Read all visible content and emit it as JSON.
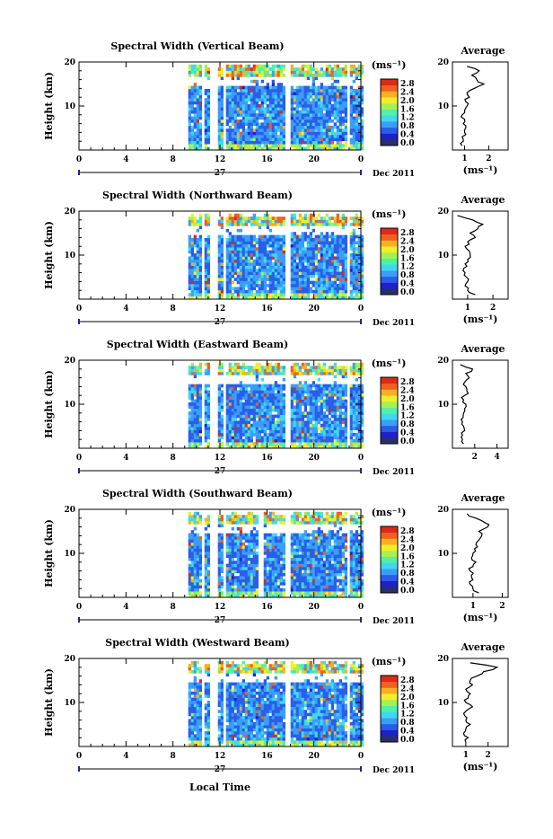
{
  "figure": {
    "xlabel": "Local Time",
    "date_label": "Dec 2011",
    "day_label": "27",
    "ylabel": "Height (km)",
    "avg_title": "Average",
    "cbar_unit": "(ms⁻¹)",
    "avg_xlabel": "(ms⁻¹)"
  },
  "colorbar": {
    "tick_labels": [
      "2.8",
      "2.4",
      "2.0",
      "1.6",
      "1.2",
      "0.8",
      "0.4",
      "0.0"
    ],
    "colors": [
      "#28306a",
      "#2020c8",
      "#2a5ee8",
      "#3a9ef8",
      "#40d8f0",
      "#50f0a8",
      "#a8f050",
      "#f0f028",
      "#f8b020",
      "#f06020",
      "#e02818"
    ]
  },
  "chart_data": [
    {
      "type": "heatmap",
      "title": "Spectral Width (Vertical Beam)",
      "x_range": [
        0,
        24
      ],
      "x_ticks": [
        "0",
        "4",
        "8",
        "12",
        "16",
        "20",
        "0"
      ],
      "ylim": [
        0,
        20
      ],
      "y_ticks": [
        "10",
        "20"
      ],
      "colorbar_range": [
        0.0,
        2.8
      ],
      "data_gaps_hours": [
        [
          0,
          9.3
        ],
        [
          10.3,
          10.6
        ],
        [
          11.1,
          11.6
        ],
        [
          12.1,
          12.4
        ],
        [
          17.5,
          17.8
        ],
        [
          22.6,
          22.9
        ]
      ],
      "avg_profile": {
        "xlim": [
          0.5,
          2.8
        ],
        "x_ticks": [
          "1",
          "2"
        ],
        "ylim": [
          0,
          20
        ],
        "height_km": [
          1,
          2,
          3,
          4,
          5,
          6,
          7,
          8,
          9,
          10,
          11,
          12,
          13,
          14,
          15,
          16,
          17,
          18,
          19
        ],
        "values": [
          0.9,
          0.95,
          0.9,
          1.0,
          1.05,
          0.95,
          1.0,
          0.9,
          1.0,
          1.1,
          1.05,
          1.2,
          1.1,
          1.4,
          1.8,
          1.5,
          1.3,
          1.6,
          1.1
        ]
      }
    },
    {
      "type": "heatmap",
      "title": "Spectral Width (Northward Beam)",
      "x_range": [
        0,
        24
      ],
      "x_ticks": [
        "0",
        "4",
        "8",
        "12",
        "16",
        "20",
        "0"
      ],
      "ylim": [
        0,
        20
      ],
      "y_ticks": [
        "10",
        "20"
      ],
      "colorbar_range": [
        0.0,
        2.8
      ],
      "data_gaps_hours": [
        [
          0,
          9.3
        ],
        [
          10.3,
          10.6
        ],
        [
          11.1,
          11.6
        ],
        [
          12.1,
          12.4
        ],
        [
          17.5,
          17.8
        ],
        [
          22.6,
          22.9
        ]
      ],
      "avg_profile": {
        "xlim": [
          0.4,
          2.6
        ],
        "x_ticks": [
          "1",
          "2"
        ],
        "ylim": [
          0,
          20
        ],
        "height_km": [
          1,
          2,
          3,
          4,
          5,
          6,
          7,
          8,
          9,
          10,
          11,
          12,
          13,
          14,
          15,
          16,
          17,
          18,
          19
        ],
        "values": [
          1.3,
          1.0,
          0.9,
          1.0,
          0.95,
          0.9,
          0.85,
          0.9,
          1.0,
          1.1,
          1.05,
          0.9,
          1.0,
          1.3,
          1.1,
          1.4,
          1.6,
          1.2,
          0.6
        ]
      }
    },
    {
      "type": "heatmap",
      "title": "Spectral Width (Eastward Beam)",
      "x_range": [
        0,
        24
      ],
      "x_ticks": [
        "0",
        "4",
        "8",
        "12",
        "16",
        "20",
        "0"
      ],
      "ylim": [
        0,
        20
      ],
      "y_ticks": [
        "10",
        "20"
      ],
      "colorbar_range": [
        0.0,
        2.8
      ],
      "data_gaps_hours": [
        [
          0,
          9.3
        ],
        [
          10.3,
          10.6
        ],
        [
          11.1,
          11.6
        ],
        [
          12.1,
          12.4
        ],
        [
          17.5,
          17.8
        ],
        [
          22.6,
          22.9
        ]
      ],
      "avg_profile": {
        "xlim": [
          0,
          5
        ],
        "x_ticks": [
          "2",
          "4"
        ],
        "ylim": [
          0,
          20
        ],
        "height_km": [
          1,
          2,
          3,
          4,
          5,
          6,
          7,
          8,
          9,
          10,
          11,
          12,
          13,
          14,
          15,
          16,
          17,
          18,
          19
        ],
        "values": [
          1.0,
          0.9,
          0.9,
          1.1,
          1.0,
          0.9,
          0.95,
          1.0,
          1.1,
          1.2,
          1.0,
          1.1,
          1.3,
          1.2,
          1.1,
          1.5,
          1.2,
          1.8,
          0.7
        ]
      }
    },
    {
      "type": "heatmap",
      "title": "Spectral Width (Southward Beam)",
      "x_range": [
        0,
        24
      ],
      "x_ticks": [
        "0",
        "4",
        "8",
        "12",
        "16",
        "20",
        "0"
      ],
      "ylim": [
        0,
        20
      ],
      "y_ticks": [
        "10",
        "20"
      ],
      "colorbar_range": [
        0.0,
        2.8
      ],
      "data_gaps_hours": [
        [
          0,
          9.3
        ],
        [
          10.3,
          10.6
        ],
        [
          11.1,
          11.6
        ],
        [
          12.1,
          12.4
        ],
        [
          15.2,
          15.6
        ],
        [
          17.5,
          17.8
        ],
        [
          22.6,
          22.9
        ]
      ],
      "avg_profile": {
        "xlim": [
          0.3,
          2.2
        ],
        "x_ticks": [
          "1",
          "2"
        ],
        "ylim": [
          0,
          20
        ],
        "height_km": [
          1,
          2,
          3,
          4,
          5,
          6,
          7,
          8,
          9,
          10,
          11,
          12,
          13,
          14,
          15,
          16,
          17,
          18,
          19
        ],
        "values": [
          1.2,
          1.0,
          0.9,
          1.0,
          0.95,
          0.9,
          1.0,
          1.1,
          0.95,
          1.0,
          1.05,
          1.1,
          1.2,
          1.3,
          1.2,
          1.5,
          1.4,
          1.1,
          0.8
        ]
      }
    },
    {
      "type": "heatmap",
      "title": "Spectral Width (Westward Beam)",
      "x_range": [
        0,
        24
      ],
      "x_ticks": [
        "0",
        "4",
        "8",
        "12",
        "16",
        "20",
        "0"
      ],
      "ylim": [
        0,
        20
      ],
      "y_ticks": [
        "10",
        "20"
      ],
      "colorbar_range": [
        0.0,
        2.8
      ],
      "data_gaps_hours": [
        [
          0,
          9.3
        ],
        [
          10.3,
          10.6
        ],
        [
          11.1,
          11.6
        ],
        [
          12.1,
          12.4
        ],
        [
          17.5,
          17.8
        ],
        [
          22.6,
          22.9
        ]
      ],
      "avg_profile": {
        "xlim": [
          0.4,
          2.9
        ],
        "x_ticks": [
          "1",
          "2"
        ],
        "ylim": [
          0,
          20
        ],
        "height_km": [
          1,
          2,
          3,
          4,
          5,
          6,
          7,
          8,
          9,
          10,
          11,
          12,
          13,
          14,
          15,
          16,
          17,
          18,
          19
        ],
        "values": [
          1.0,
          1.1,
          0.9,
          1.0,
          1.2,
          1.0,
          0.95,
          1.0,
          1.3,
          1.0,
          1.1,
          1.2,
          1.0,
          1.3,
          1.2,
          1.5,
          1.8,
          2.4,
          1.2
        ]
      }
    }
  ]
}
